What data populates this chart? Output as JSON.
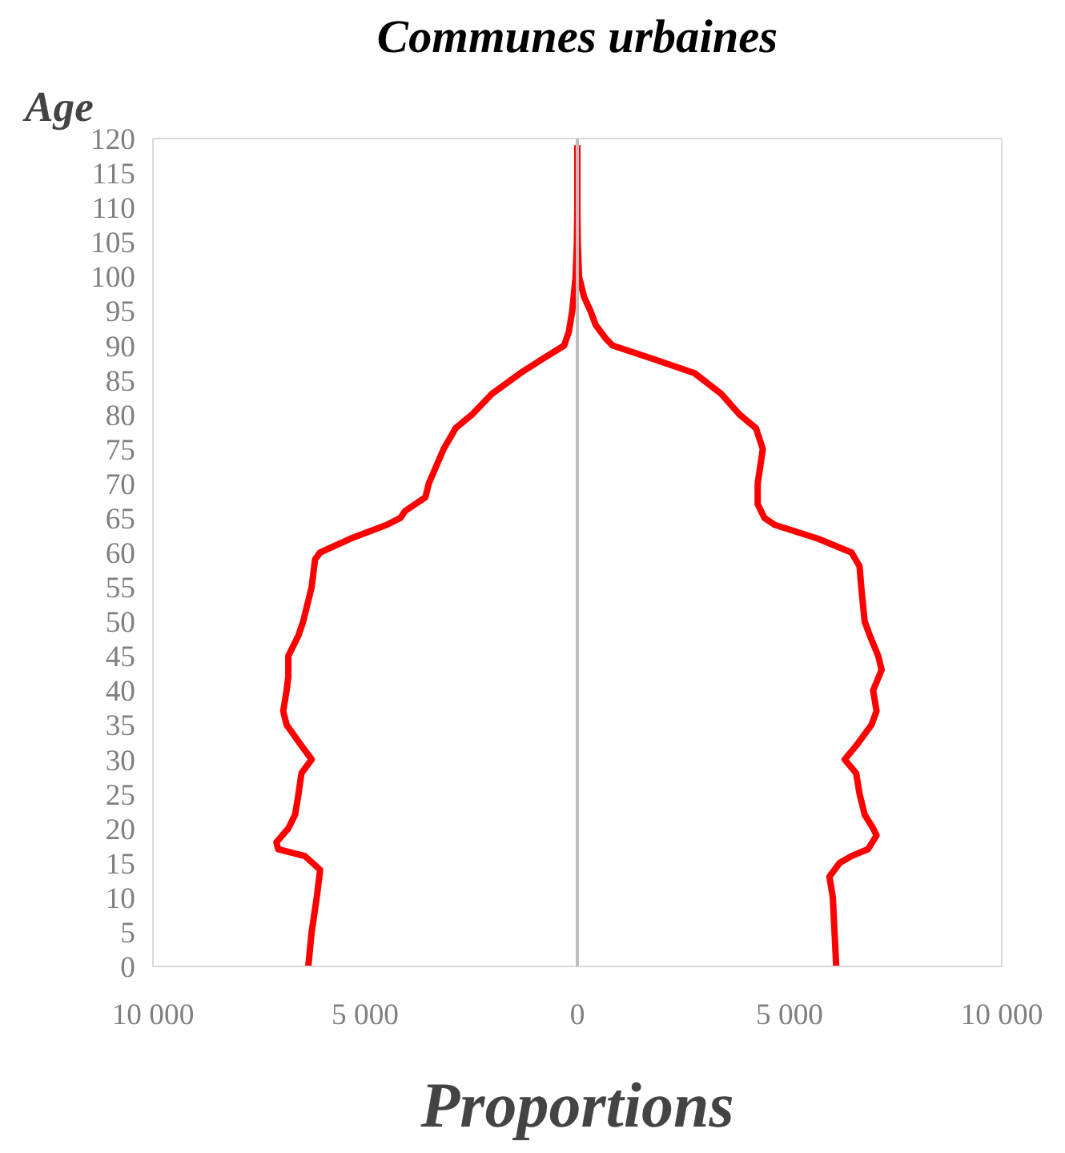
{
  "chart_data": {
    "type": "line",
    "orientation": "horizontal",
    "title": "Communes urbaines",
    "xlabel": "Proportions",
    "ylabel": "Age",
    "series": [
      {
        "color": "#ff0000",
        "x": [
          0,
          5,
          10,
          14,
          16,
          17,
          18,
          20,
          22,
          25,
          28,
          30,
          32,
          35,
          37,
          40,
          42,
          45,
          48,
          50,
          55,
          59,
          60,
          62,
          64,
          65,
          66,
          68,
          70,
          75,
          78,
          80,
          83,
          86,
          88,
          90,
          92,
          95,
          100,
          105,
          110,
          119
        ],
        "values": [
          -6340,
          -6260,
          -6140,
          -6060,
          -6420,
          -7050,
          -7090,
          -6810,
          -6650,
          -6570,
          -6500,
          -6260,
          -6500,
          -6850,
          -6930,
          -6850,
          -6810,
          -6810,
          -6570,
          -6460,
          -6260,
          -6180,
          -6060,
          -5350,
          -4490,
          -4170,
          -4060,
          -3580,
          -3500,
          -3150,
          -2870,
          -2480,
          -2010,
          -1340,
          -830,
          -310,
          -200,
          -120,
          -40,
          -10,
          0,
          0
        ]
      },
      {
        "color": "#ff0000",
        "x": [
          0,
          5,
          10,
          13,
          15,
          16,
          17,
          19,
          20,
          22,
          25,
          28,
          30,
          32,
          35,
          37,
          40,
          43,
          45,
          48,
          50,
          55,
          58,
          60,
          62,
          64,
          65,
          67,
          70,
          75,
          78,
          80,
          83,
          86,
          88,
          90,
          91,
          93,
          95,
          97,
          100,
          105,
          110,
          119
        ],
        "values": [
          6100,
          6060,
          6020,
          5940,
          6180,
          6460,
          6850,
          7050,
          6970,
          6770,
          6650,
          6570,
          6300,
          6570,
          6930,
          7050,
          6970,
          7170,
          7090,
          6890,
          6770,
          6690,
          6650,
          6460,
          5670,
          4650,
          4410,
          4250,
          4250,
          4370,
          4210,
          3820,
          3390,
          2760,
          1810,
          830,
          670,
          430,
          310,
          160,
          40,
          10,
          0,
          0
        ]
      }
    ],
    "xlim": [
      -10000,
      10000
    ],
    "xticks": [
      {
        "value": -10000,
        "label": "10 000"
      },
      {
        "value": -5000,
        "label": "5 000"
      },
      0,
      {
        "value": 5000,
        "label": "5 000"
      },
      {
        "value": 10000,
        "label": "10 000"
      }
    ],
    "ylim": [
      0,
      120
    ],
    "yticks": [
      0,
      5,
      10,
      15,
      20,
      25,
      30,
      35,
      40,
      45,
      50,
      55,
      60,
      65,
      70,
      75,
      80,
      85,
      90,
      95,
      100,
      105,
      110,
      115,
      120
    ],
    "ref_lines": [
      {
        "axis": "x",
        "value": 0,
        "color": "#bfbfbf"
      }
    ],
    "grid": false
  }
}
